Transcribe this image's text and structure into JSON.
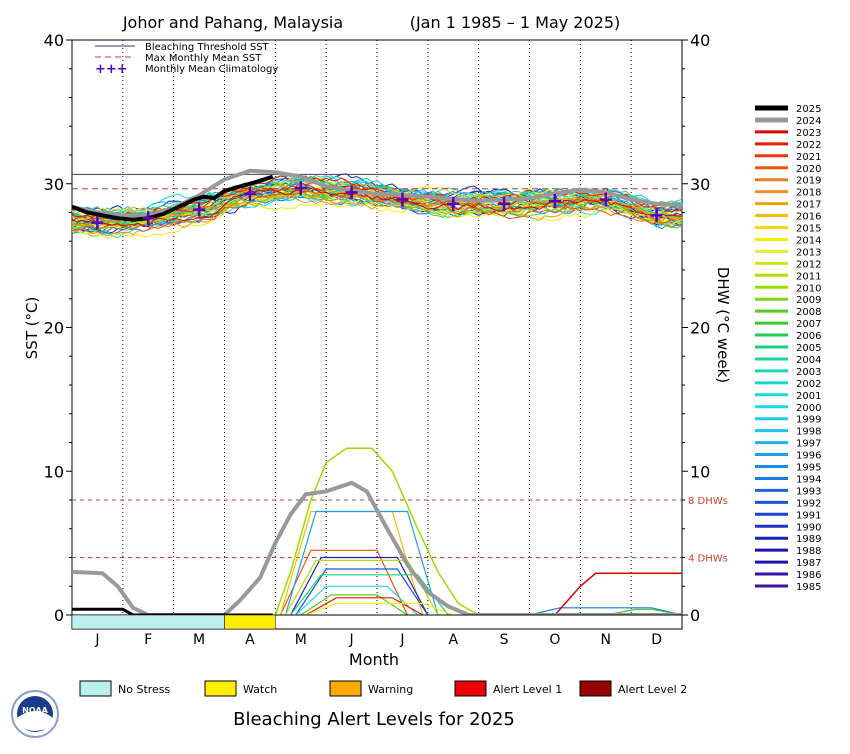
{
  "chart_data": {
    "type": "line",
    "title": "Johor and Pahang, Malaysia",
    "date_range": "(Jan 1 1985 – 1 May 2025)",
    "xlabel": "Month",
    "ylabel_left": "SST (°C)",
    "ylabel_right": "DHW (°C week)",
    "ylim": [
      0,
      40
    ],
    "yticks": [
      0,
      10,
      20,
      30,
      40
    ],
    "months": [
      "J",
      "F",
      "M",
      "A",
      "M",
      "J",
      "J",
      "A",
      "S",
      "O",
      "N",
      "D"
    ],
    "grid": "vertical dotted month lines",
    "legend_top": {
      "placement": "top-left",
      "entries": [
        {
          "label": "Bleaching Threshold SST",
          "style": "solid",
          "color": "#5c2a7a"
        },
        {
          "label": "Max Monthly Mean SST",
          "style": "dashed",
          "color": "#c0392b"
        },
        {
          "label": "Monthly Mean Climatology",
          "style": "cross",
          "color": "#5500bb"
        }
      ]
    },
    "bleaching_threshold_sst": 30.65,
    "max_monthly_mean_sst": 29.65,
    "dhw_reference_lines": [
      {
        "value": 8,
        "label": "8 DHWs"
      },
      {
        "value": 4,
        "label": "4 DHWs"
      }
    ],
    "climatology": [
      {
        "month": 1,
        "value": 27.3
      },
      {
        "month": 2,
        "value": 27.6
      },
      {
        "month": 3,
        "value": 28.2
      },
      {
        "month": 4,
        "value": 29.3
      },
      {
        "month": 5,
        "value": 29.7
      },
      {
        "month": 6,
        "value": 29.4
      },
      {
        "month": 7,
        "value": 28.9
      },
      {
        "month": 8,
        "value": 28.6
      },
      {
        "month": 9,
        "value": 28.6
      },
      {
        "month": 10,
        "value": 28.8
      },
      {
        "month": 11,
        "value": 28.9
      },
      {
        "month": 12,
        "value": 27.8
      }
    ],
    "sst_2025": [
      {
        "x": 0.0,
        "y": 28.4
      },
      {
        "x": 0.3,
        "y": 28.0
      },
      {
        "x": 0.6,
        "y": 27.8
      },
      {
        "x": 0.9,
        "y": 27.6
      },
      {
        "x": 1.2,
        "y": 27.5
      },
      {
        "x": 1.5,
        "y": 27.6
      },
      {
        "x": 1.8,
        "y": 27.9
      },
      {
        "x": 2.1,
        "y": 28.4
      },
      {
        "x": 2.4,
        "y": 28.9
      },
      {
        "x": 2.6,
        "y": 29.1
      },
      {
        "x": 2.8,
        "y": 29.0
      },
      {
        "x": 3.0,
        "y": 29.5
      },
      {
        "x": 3.3,
        "y": 29.8
      },
      {
        "x": 3.6,
        "y": 30.1
      },
      {
        "x": 3.95,
        "y": 30.5
      }
    ],
    "sst_2024": [
      {
        "x": 0.0,
        "y": 28.4
      },
      {
        "x": 0.5,
        "y": 28.0
      },
      {
        "x": 1.0,
        "y": 27.8
      },
      {
        "x": 1.5,
        "y": 27.8
      },
      {
        "x": 2.0,
        "y": 28.3
      },
      {
        "x": 2.5,
        "y": 29.2
      },
      {
        "x": 3.0,
        "y": 30.3
      },
      {
        "x": 3.5,
        "y": 30.9
      },
      {
        "x": 4.0,
        "y": 30.8
      },
      {
        "x": 4.5,
        "y": 30.5
      },
      {
        "x": 5.0,
        "y": 29.8
      },
      {
        "x": 5.5,
        "y": 29.5
      },
      {
        "x": 6.0,
        "y": 29.3
      },
      {
        "x": 7.0,
        "y": 29.1
      },
      {
        "x": 8.0,
        "y": 28.8
      },
      {
        "x": 9.0,
        "y": 29.0
      },
      {
        "x": 10.0,
        "y": 29.6
      },
      {
        "x": 10.5,
        "y": 29.4
      },
      {
        "x": 11.0,
        "y": 28.9
      },
      {
        "x": 11.5,
        "y": 28.6
      },
      {
        "x": 12.0,
        "y": 28.5
      }
    ],
    "dhw_2024": [
      {
        "x": 0.0,
        "y": 3.0
      },
      {
        "x": 0.6,
        "y": 2.9
      },
      {
        "x": 0.9,
        "y": 2.0
      },
      {
        "x": 1.2,
        "y": 0.5
      },
      {
        "x": 1.5,
        "y": 0.0
      },
      {
        "x": 3.0,
        "y": 0.0
      },
      {
        "x": 3.3,
        "y": 1.0
      },
      {
        "x": 3.7,
        "y": 2.6
      },
      {
        "x": 4.0,
        "y": 5.0
      },
      {
        "x": 4.3,
        "y": 7.0
      },
      {
        "x": 4.6,
        "y": 8.4
      },
      {
        "x": 5.0,
        "y": 8.6
      },
      {
        "x": 5.5,
        "y": 9.2
      },
      {
        "x": 5.8,
        "y": 8.6
      },
      {
        "x": 6.2,
        "y": 6.0
      },
      {
        "x": 6.6,
        "y": 3.5
      },
      {
        "x": 7.0,
        "y": 1.6
      },
      {
        "x": 7.4,
        "y": 0.6
      },
      {
        "x": 7.8,
        "y": 0.0
      },
      {
        "x": 12.0,
        "y": 0.0
      }
    ],
    "dhw_2025": [
      {
        "x": 0.0,
        "y": 0.4
      },
      {
        "x": 1.0,
        "y": 0.4
      },
      {
        "x": 1.2,
        "y": 0.0
      },
      {
        "x": 3.95,
        "y": 0.0
      }
    ],
    "dhw_2023": [
      {
        "x": 9.5,
        "y": 0.0
      },
      {
        "x": 10.0,
        "y": 2.0
      },
      {
        "x": 10.3,
        "y": 2.9
      },
      {
        "x": 12.0,
        "y": 2.9
      }
    ],
    "dhw_2010": [
      {
        "x": 4.0,
        "y": 0.0
      },
      {
        "x": 4.3,
        "y": 3.0
      },
      {
        "x": 4.7,
        "y": 8.0
      },
      {
        "x": 5.0,
        "y": 10.6
      },
      {
        "x": 5.4,
        "y": 11.6
      },
      {
        "x": 5.9,
        "y": 11.6
      },
      {
        "x": 6.3,
        "y": 10.0
      },
      {
        "x": 6.8,
        "y": 6.0
      },
      {
        "x": 7.2,
        "y": 3.0
      },
      {
        "x": 7.6,
        "y": 0.8
      },
      {
        "x": 8.0,
        "y": 0.0
      }
    ],
    "year_legend": {
      "placement": "right",
      "entries": [
        {
          "year": "2025",
          "color": "#000000",
          "width": 4
        },
        {
          "year": "2024",
          "color": "#999999",
          "width": 4
        },
        {
          "year": "2023",
          "color": "#dd0000",
          "width": 2
        },
        {
          "year": "2022",
          "color": "#e51a00",
          "width": 2
        },
        {
          "year": "2021",
          "color": "#ee3300",
          "width": 2
        },
        {
          "year": "2020",
          "color": "#f25500",
          "width": 2
        },
        {
          "year": "2019",
          "color": "#f27a1e",
          "width": 2
        },
        {
          "year": "2018",
          "color": "#f0902a",
          "width": 2
        },
        {
          "year": "2017",
          "color": "#f2a500",
          "width": 2
        },
        {
          "year": "2016",
          "color": "#f7bb00",
          "width": 2
        },
        {
          "year": "2015",
          "color": "#fdd800",
          "width": 2
        },
        {
          "year": "2014",
          "color": "#f5ee00",
          "width": 2
        },
        {
          "year": "2013",
          "color": "#e3ef33",
          "width": 2
        },
        {
          "year": "2012",
          "color": "#cde61a",
          "width": 2
        },
        {
          "year": "2011",
          "color": "#b3e000",
          "width": 2
        },
        {
          "year": "2010",
          "color": "#99dd00",
          "width": 2
        },
        {
          "year": "2009",
          "color": "#7bd61a",
          "width": 2
        },
        {
          "year": "2008",
          "color": "#55cc22",
          "width": 2
        },
        {
          "year": "2007",
          "color": "#33cc33",
          "width": 2
        },
        {
          "year": "2006",
          "color": "#22cc55",
          "width": 2
        },
        {
          "year": "2005",
          "color": "#1ad27a",
          "width": 2
        },
        {
          "year": "2004",
          "color": "#1ad699",
          "width": 2
        },
        {
          "year": "2003",
          "color": "#1ad6b0",
          "width": 2
        },
        {
          "year": "2002",
          "color": "#1ad6c4",
          "width": 2
        },
        {
          "year": "2001",
          "color": "#1adad6",
          "width": 2
        },
        {
          "year": "2000",
          "color": "#1ad8e6",
          "width": 2
        },
        {
          "year": "1999",
          "color": "#22cce8",
          "width": 2
        },
        {
          "year": "1998",
          "color": "#22c0ee",
          "width": 2
        },
        {
          "year": "1997",
          "color": "#22b0ee",
          "width": 2
        },
        {
          "year": "1996",
          "color": "#1a9eee",
          "width": 2
        },
        {
          "year": "1995",
          "color": "#1a8ce8",
          "width": 2
        },
        {
          "year": "1994",
          "color": "#1a7ae0",
          "width": 2
        },
        {
          "year": "1993",
          "color": "#1a66dd",
          "width": 2
        },
        {
          "year": "1992",
          "color": "#1a55d6",
          "width": 2
        },
        {
          "year": "1991",
          "color": "#1a44cc",
          "width": 2
        },
        {
          "year": "1990",
          "color": "#1a33c4",
          "width": 2
        },
        {
          "year": "1989",
          "color": "#1a22bb",
          "width": 2
        },
        {
          "year": "1988",
          "color": "#1a11b3",
          "width": 2
        },
        {
          "year": "1987",
          "color": "#2211aa",
          "width": 2
        },
        {
          "year": "1986",
          "color": "#3311a6",
          "width": 2
        },
        {
          "year": "1985",
          "color": "#4411a0",
          "width": 2
        }
      ]
    },
    "alert_bar_2025": [
      {
        "start": 0,
        "end": 3.0,
        "level": "No Stress",
        "color": "#bbf0f0"
      },
      {
        "start": 3.0,
        "end": 4.0,
        "level": "Watch",
        "color": "#ffee00"
      }
    ],
    "alert_legend": [
      {
        "label": "No Stress",
        "color": "#bbf0f0"
      },
      {
        "label": "Watch",
        "color": "#ffee00"
      },
      {
        "label": "Warning",
        "color": "#ffaa00"
      },
      {
        "label": "Alert Level 1",
        "color": "#ee0000"
      },
      {
        "label": "Alert Level 2",
        "color": "#990000"
      }
    ],
    "footer_title": "Bleaching Alert Levels for 2025"
  },
  "logo": {
    "text": "NOAA"
  }
}
